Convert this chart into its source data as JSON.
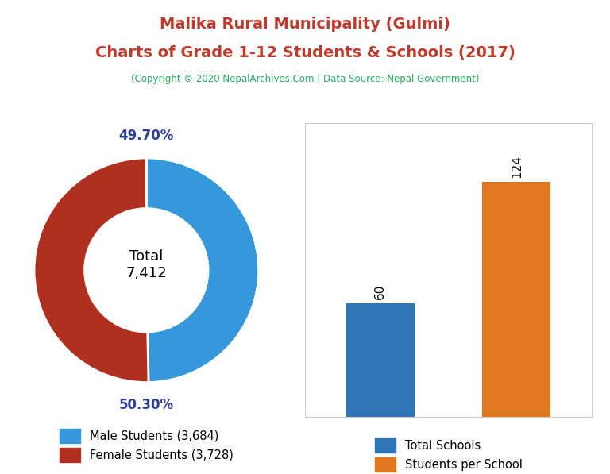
{
  "title_line1": "Malika Rural Municipality (Gulmi)",
  "title_line2": "Charts of Grade 1-12 Students & Schools (2017)",
  "title_color": "#c0392b",
  "subtitle": "(Copyright © 2020 NepalArchives.Com | Data Source: Nepal Government)",
  "subtitle_color": "#27ae60",
  "pie_values": [
    3684,
    3728
  ],
  "pie_colors": [
    "#3498db",
    "#b03020"
  ],
  "pie_labels": [
    "49.70%",
    "50.30%"
  ],
  "pie_label_color": "#2c3e9e",
  "total_label": "Total\n7,412",
  "legend_labels": [
    "Male Students (3,684)",
    "Female Students (3,728)"
  ],
  "bar_values": [
    60,
    124
  ],
  "bar_colors": [
    "#2e75b6",
    "#e07820"
  ],
  "bar_labels": [
    "60",
    "124"
  ],
  "bar_legend_labels": [
    "Total Schools",
    "Students per School"
  ],
  "background_color": "#ffffff"
}
